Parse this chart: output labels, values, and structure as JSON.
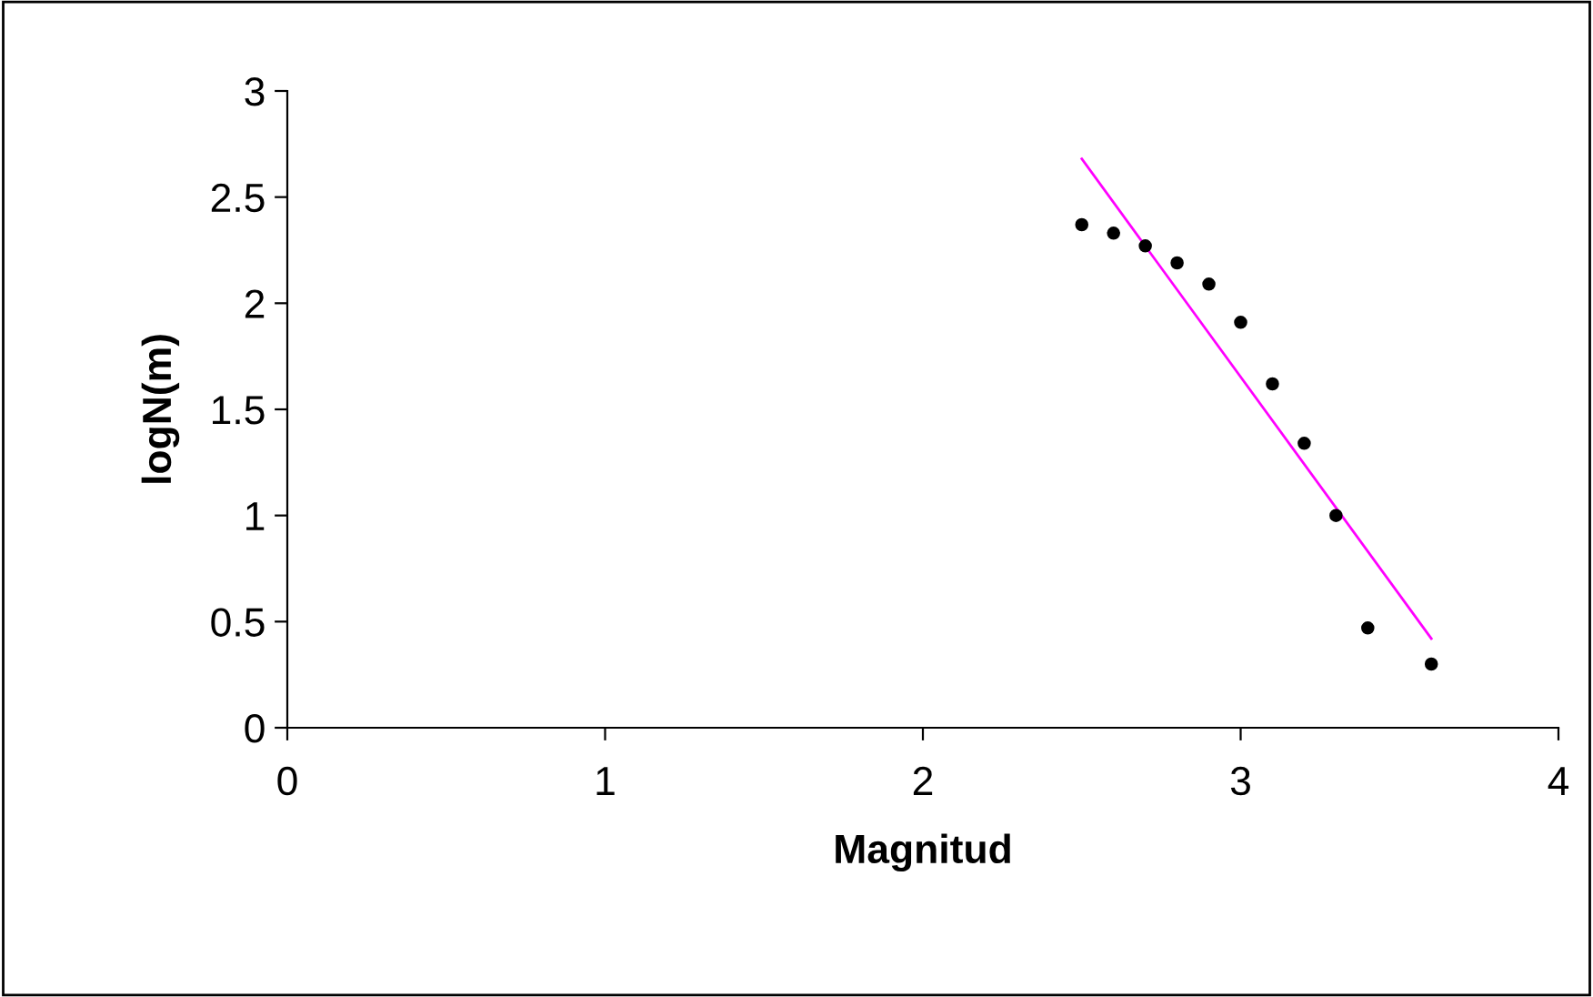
{
  "chart_data": {
    "type": "scatter",
    "xlabel": "Magnitud",
    "ylabel": "logN(m)",
    "xlim": [
      0,
      4
    ],
    "xticks": [
      0,
      1,
      2,
      3,
      4
    ],
    "ylim": [
      0,
      3
    ],
    "yticks": [
      0,
      0.5,
      1,
      1.5,
      2,
      2.5,
      3
    ],
    "grid": false,
    "legend": false,
    "series": [
      {
        "marker": "circle",
        "color": "#000000",
        "x": [
          2.5,
          2.6,
          2.7,
          2.8,
          2.9,
          3.0,
          3.1,
          3.2,
          3.3,
          3.4,
          3.6
        ],
        "values": [
          2.37,
          2.33,
          2.27,
          2.19,
          2.09,
          1.91,
          1.62,
          1.34,
          1.0,
          0.47,
          0.3
        ]
      },
      {
        "type": "line",
        "marker": "none",
        "color": "#ff00ff",
        "x": [
          2.5,
          3.6
        ],
        "values": [
          2.68,
          0.42
        ]
      }
    ]
  }
}
